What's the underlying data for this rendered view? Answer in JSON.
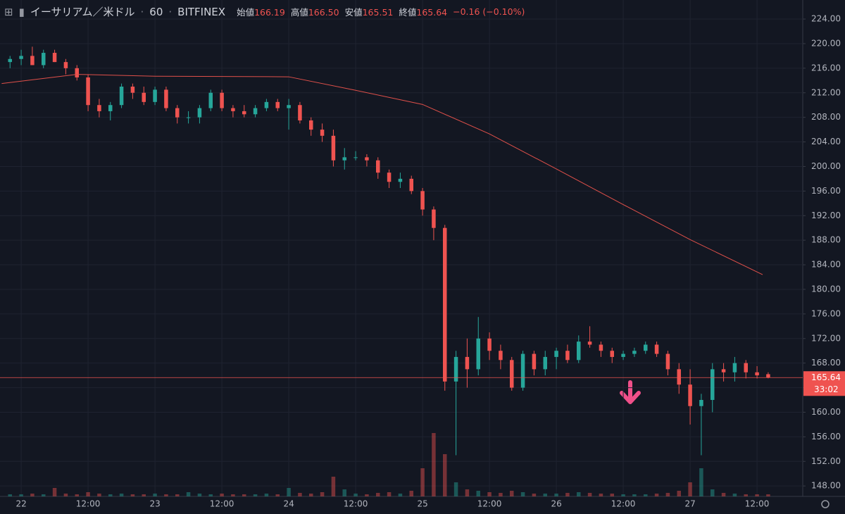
{
  "chart_data": {
    "type": "candlestick",
    "symbol": "イーサリアム／米ドル",
    "interval": "60",
    "exchange": "BITFINEX",
    "ohlc_header": [
      {
        "label": "始値",
        "value": "166.19"
      },
      {
        "label": "高値",
        "value": "166.50"
      },
      {
        "label": "安値",
        "value": "165.51"
      },
      {
        "label": "終値",
        "value": "165.64"
      }
    ],
    "change": "−0.16 (−0.10%)",
    "last_price": {
      "value": 165.64,
      "label": "165.64"
    },
    "countdown": "33:02",
    "up_color": "#26a69a",
    "down_color": "#ef5350",
    "ma_color": "#e0504a",
    "xlim": [
      -3.8,
      140.2
    ],
    "ylim": [
      146.3,
      227.1
    ],
    "vlim": [
      0,
      100
    ],
    "grid": true,
    "xticks": [
      {
        "value": 0,
        "label": "22"
      },
      {
        "value": 12,
        "label": "12:00"
      },
      {
        "value": 24,
        "label": "23"
      },
      {
        "value": 36,
        "label": "12:00"
      },
      {
        "value": 48,
        "label": "24"
      },
      {
        "value": 60,
        "label": "12:00"
      },
      {
        "value": 72,
        "label": "25"
      },
      {
        "value": 84,
        "label": "12:00"
      },
      {
        "value": 96,
        "label": "26"
      },
      {
        "value": 108,
        "label": "12:00"
      },
      {
        "value": 120,
        "label": "27"
      },
      {
        "value": 132,
        "label": "12:00"
      }
    ],
    "yticks": [
      {
        "value": 224,
        "label": "224.00"
      },
      {
        "value": 220,
        "label": "220.00"
      },
      {
        "value": 216,
        "label": "216.00"
      },
      {
        "value": 212,
        "label": "212.00"
      },
      {
        "value": 208,
        "label": "208.00"
      },
      {
        "value": 204,
        "label": "204.00"
      },
      {
        "value": 200,
        "label": "200.00"
      },
      {
        "value": 196,
        "label": "196.00"
      },
      {
        "value": 192,
        "label": "192.00"
      },
      {
        "value": 188,
        "label": "188.00"
      },
      {
        "value": 184,
        "label": "184.00"
      },
      {
        "value": 180,
        "label": "180.00"
      },
      {
        "value": 176,
        "label": "176.00"
      },
      {
        "value": 172,
        "label": "172.00"
      },
      {
        "value": 168,
        "label": "168.00"
      },
      {
        "value": 164,
        "label": "164.00"
      },
      {
        "value": 160,
        "label": "160.00"
      },
      {
        "value": 156,
        "label": "156.00"
      },
      {
        "value": 152,
        "label": "152.00"
      },
      {
        "value": 148,
        "label": "148.00"
      }
    ],
    "x": [
      -2,
      0,
      2,
      4,
      6,
      8,
      10,
      12,
      14,
      16,
      18,
      20,
      22,
      24,
      26,
      28,
      30,
      32,
      34,
      36,
      38,
      40,
      42,
      44,
      46,
      48,
      50,
      52,
      54,
      56,
      58,
      60,
      62,
      64,
      66,
      68,
      70,
      72,
      74,
      76,
      78,
      80,
      82,
      84,
      86,
      88,
      90,
      92,
      94,
      96,
      98,
      100,
      102,
      104,
      106,
      108,
      110,
      112,
      114,
      116,
      118,
      120,
      122,
      124,
      126,
      128,
      130,
      132,
      134
    ],
    "open": [
      217,
      217.5,
      218,
      216.5,
      218.5,
      217,
      216,
      214.5,
      210,
      209,
      210,
      213,
      212,
      210.5,
      212.5,
      209.5,
      208,
      208,
      209.5,
      212,
      209.5,
      209,
      208.5,
      209.5,
      210.5,
      209.5,
      210,
      207.5,
      206,
      205,
      201,
      201.5,
      201.5,
      201,
      199,
      197.5,
      198,
      196,
      193,
      190,
      165,
      169,
      167,
      172,
      170,
      168.5,
      164,
      169.5,
      167,
      169,
      170,
      168.5,
      171.5,
      171,
      170,
      169,
      169.5,
      170,
      171,
      169.5,
      167,
      164.5,
      161,
      162,
      167,
      166.5,
      168,
      166.5,
      166.19
    ],
    "high": [
      218,
      219,
      219.5,
      219,
      219,
      217.5,
      216.5,
      215,
      211,
      210.5,
      213.5,
      213.5,
      213,
      213,
      213,
      210,
      209,
      210,
      212.5,
      212.5,
      210,
      210,
      210,
      211,
      211,
      211,
      210.5,
      208,
      207,
      206,
      203,
      202.5,
      202,
      201.5,
      199.5,
      199,
      198.5,
      196.5,
      193.5,
      190.5,
      170,
      172,
      175.5,
      173,
      171,
      169,
      170,
      170,
      170,
      170.5,
      171,
      172.5,
      174,
      171.5,
      170.5,
      170,
      170.5,
      171.5,
      171.5,
      170,
      168,
      167,
      163,
      168,
      168,
      169,
      168.5,
      167.5,
      166.5
    ],
    "low": [
      216,
      216.5,
      216.5,
      216,
      217,
      215,
      214,
      209,
      208,
      207.5,
      209.5,
      211,
      210,
      210,
      209,
      207,
      207,
      207,
      209,
      209,
      208,
      208,
      208,
      209,
      209,
      206,
      207,
      205,
      204,
      200,
      199.5,
      201,
      200,
      198,
      196.5,
      196.5,
      195.5,
      192,
      188,
      163.5,
      153,
      164,
      166,
      168.5,
      167,
      163.5,
      163.5,
      166,
      166,
      167,
      168,
      168,
      170.5,
      169,
      168,
      168.5,
      169,
      169.5,
      169,
      166,
      163,
      158,
      153,
      160,
      165,
      165,
      165.5,
      165.5,
      165.51
    ],
    "close": [
      217.5,
      218,
      216.5,
      218.5,
      217,
      216,
      214.5,
      210,
      209,
      210,
      213,
      212,
      210.5,
      212.5,
      209.5,
      208,
      208,
      209.5,
      212,
      209.5,
      209,
      208.5,
      209.5,
      210.5,
      209.5,
      210,
      207.5,
      206,
      205,
      201,
      201.5,
      201.5,
      201,
      199,
      197.5,
      198,
      196,
      193,
      190,
      165,
      169,
      167,
      172,
      170,
      168.5,
      164,
      169.5,
      167,
      169,
      170,
      168.5,
      171.5,
      171,
      170,
      169,
      169.5,
      170,
      171,
      169.5,
      167,
      164.5,
      161,
      162,
      167,
      166.5,
      168,
      166.5,
      166,
      165.64
    ],
    "volume": [
      3,
      3,
      4,
      3,
      12,
      4,
      3,
      6,
      4,
      3,
      4,
      3,
      3,
      4,
      3,
      3,
      6,
      4,
      3,
      4,
      3,
      3,
      3,
      4,
      3,
      12,
      5,
      4,
      6,
      28,
      10,
      4,
      3,
      5,
      6,
      4,
      8,
      40,
      90,
      60,
      20,
      10,
      8,
      6,
      5,
      8,
      6,
      4,
      4,
      4,
      5,
      6,
      5,
      4,
      4,
      3,
      3,
      3,
      4,
      5,
      8,
      20,
      40,
      10,
      5,
      4,
      3,
      3,
      3
    ],
    "ma_x": [
      -3.5,
      10,
      24,
      48,
      60,
      72,
      84,
      96,
      108,
      120,
      133
    ],
    "ma_values": [
      213.5,
      215,
      214.7,
      214.6,
      212.4,
      210.1,
      205.3,
      199.6,
      193.8,
      188.1,
      182.4
    ]
  }
}
